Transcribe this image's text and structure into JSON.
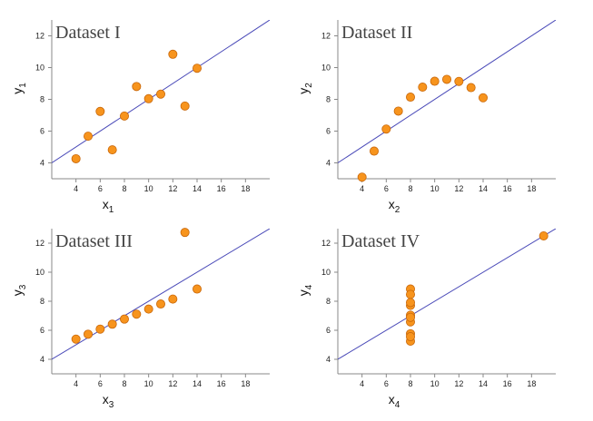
{
  "chart_data": [
    {
      "type": "scatter",
      "title": "Dataset I",
      "xlabel": "x",
      "xlabel_sub": "1",
      "ylabel": "y",
      "ylabel_sub": "1",
      "xlim": [
        2,
        20
      ],
      "ylim": [
        3,
        13
      ],
      "xticks": [
        4,
        6,
        8,
        10,
        12,
        14,
        16,
        18
      ],
      "yticks": [
        4,
        6,
        8,
        10,
        12
      ],
      "x": [
        10,
        8,
        13,
        9,
        11,
        14,
        6,
        4,
        12,
        7,
        5
      ],
      "y": [
        8.04,
        6.95,
        7.58,
        8.81,
        8.33,
        9.96,
        7.24,
        4.26,
        10.84,
        4.82,
        5.68
      ],
      "fit": {
        "intercept": 3.0,
        "slope": 0.5
      }
    },
    {
      "type": "scatter",
      "title": "Dataset II",
      "xlabel": "x",
      "xlabel_sub": "2",
      "ylabel": "y",
      "ylabel_sub": "2",
      "xlim": [
        2,
        20
      ],
      "ylim": [
        3,
        13
      ],
      "xticks": [
        4,
        6,
        8,
        10,
        12,
        14,
        16,
        18
      ],
      "yticks": [
        4,
        6,
        8,
        10,
        12
      ],
      "x": [
        10,
        8,
        13,
        9,
        11,
        14,
        6,
        4,
        12,
        7,
        5
      ],
      "y": [
        9.14,
        8.14,
        8.74,
        8.77,
        9.26,
        8.1,
        6.13,
        3.1,
        9.13,
        7.26,
        4.74
      ],
      "fit": {
        "intercept": 3.0,
        "slope": 0.5
      }
    },
    {
      "type": "scatter",
      "title": "Dataset III",
      "xlabel": "x",
      "xlabel_sub": "3",
      "ylabel": "y",
      "ylabel_sub": "3",
      "xlim": [
        2,
        20
      ],
      "ylim": [
        3,
        13
      ],
      "xticks": [
        4,
        6,
        8,
        10,
        12,
        14,
        16,
        18
      ],
      "yticks": [
        4,
        6,
        8,
        10,
        12
      ],
      "x": [
        10,
        8,
        13,
        9,
        11,
        14,
        6,
        4,
        12,
        7,
        5
      ],
      "y": [
        7.46,
        6.77,
        12.74,
        7.11,
        7.81,
        8.84,
        6.08,
        5.39,
        8.15,
        6.42,
        5.73
      ],
      "fit": {
        "intercept": 3.0,
        "slope": 0.5
      }
    },
    {
      "type": "scatter",
      "title": "Dataset IV",
      "xlabel": "x",
      "xlabel_sub": "4",
      "ylabel": "y",
      "ylabel_sub": "4",
      "xlim": [
        2,
        20
      ],
      "ylim": [
        3,
        13
      ],
      "xticks": [
        4,
        6,
        8,
        10,
        12,
        14,
        16,
        18
      ],
      "yticks": [
        4,
        6,
        8,
        10,
        12
      ],
      "x": [
        8,
        8,
        8,
        8,
        8,
        8,
        8,
        19,
        8,
        8,
        8
      ],
      "y": [
        6.58,
        5.76,
        7.71,
        8.84,
        8.47,
        7.04,
        5.25,
        12.5,
        5.56,
        7.91,
        6.89
      ],
      "fit": {
        "intercept": 3.0,
        "slope": 0.5
      }
    }
  ],
  "colors": {
    "point_fill": "#f7941d",
    "point_stroke": "#c8670a",
    "fit_line": "#4a4ab8",
    "axis": "#888888"
  }
}
